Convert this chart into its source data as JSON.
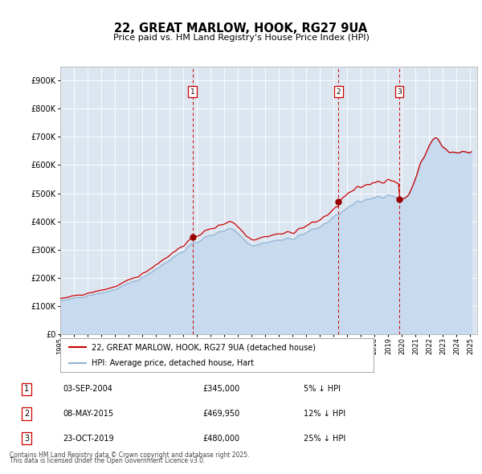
{
  "title": "22, GREAT MARLOW, HOOK, RG27 9UA",
  "subtitle": "Price paid vs. HM Land Registry's House Price Index (HPI)",
  "hpi_label": "HPI: Average price, detached house, Hart",
  "price_label": "22, GREAT MARLOW, HOOK, RG27 9UA (detached house)",
  "footer_line1": "Contains HM Land Registry data © Crown copyright and database right 2025.",
  "footer_line2": "This data is licensed under the Open Government Licence v3.0.",
  "ylim": [
    0,
    950000
  ],
  "yticks": [
    0,
    100000,
    200000,
    300000,
    400000,
    500000,
    600000,
    700000,
    800000,
    900000
  ],
  "ytick_labels": [
    "£0",
    "£100K",
    "£200K",
    "£300K",
    "£400K",
    "£500K",
    "£600K",
    "£700K",
    "£800K",
    "£900K"
  ],
  "hpi_color": "#92b4d4",
  "hpi_fill_color": "#c5d9ee",
  "price_color": "#cc0000",
  "marker_color": "#990000",
  "bg_color": "#dce6f1",
  "vline_color": "#cc0000",
  "transactions": [
    {
      "id": 1,
      "date": "03-SEP-2004",
      "price": 345000,
      "pct": "5",
      "x_year": 2004.67
    },
    {
      "id": 2,
      "date": "08-MAY-2015",
      "price": 469950,
      "pct": "12",
      "x_year": 2015.36
    },
    {
      "id": 3,
      "date": "23-OCT-2019",
      "price": 480000,
      "pct": "25",
      "x_year": 2019.81
    }
  ],
  "xlim": [
    1995.0,
    2025.5
  ],
  "xticks": [
    1995,
    1996,
    1997,
    1998,
    1999,
    2000,
    2001,
    2002,
    2003,
    2004,
    2005,
    2006,
    2007,
    2008,
    2009,
    2010,
    2011,
    2012,
    2013,
    2014,
    2015,
    2016,
    2017,
    2018,
    2019,
    2020,
    2021,
    2022,
    2023,
    2024,
    2025
  ]
}
